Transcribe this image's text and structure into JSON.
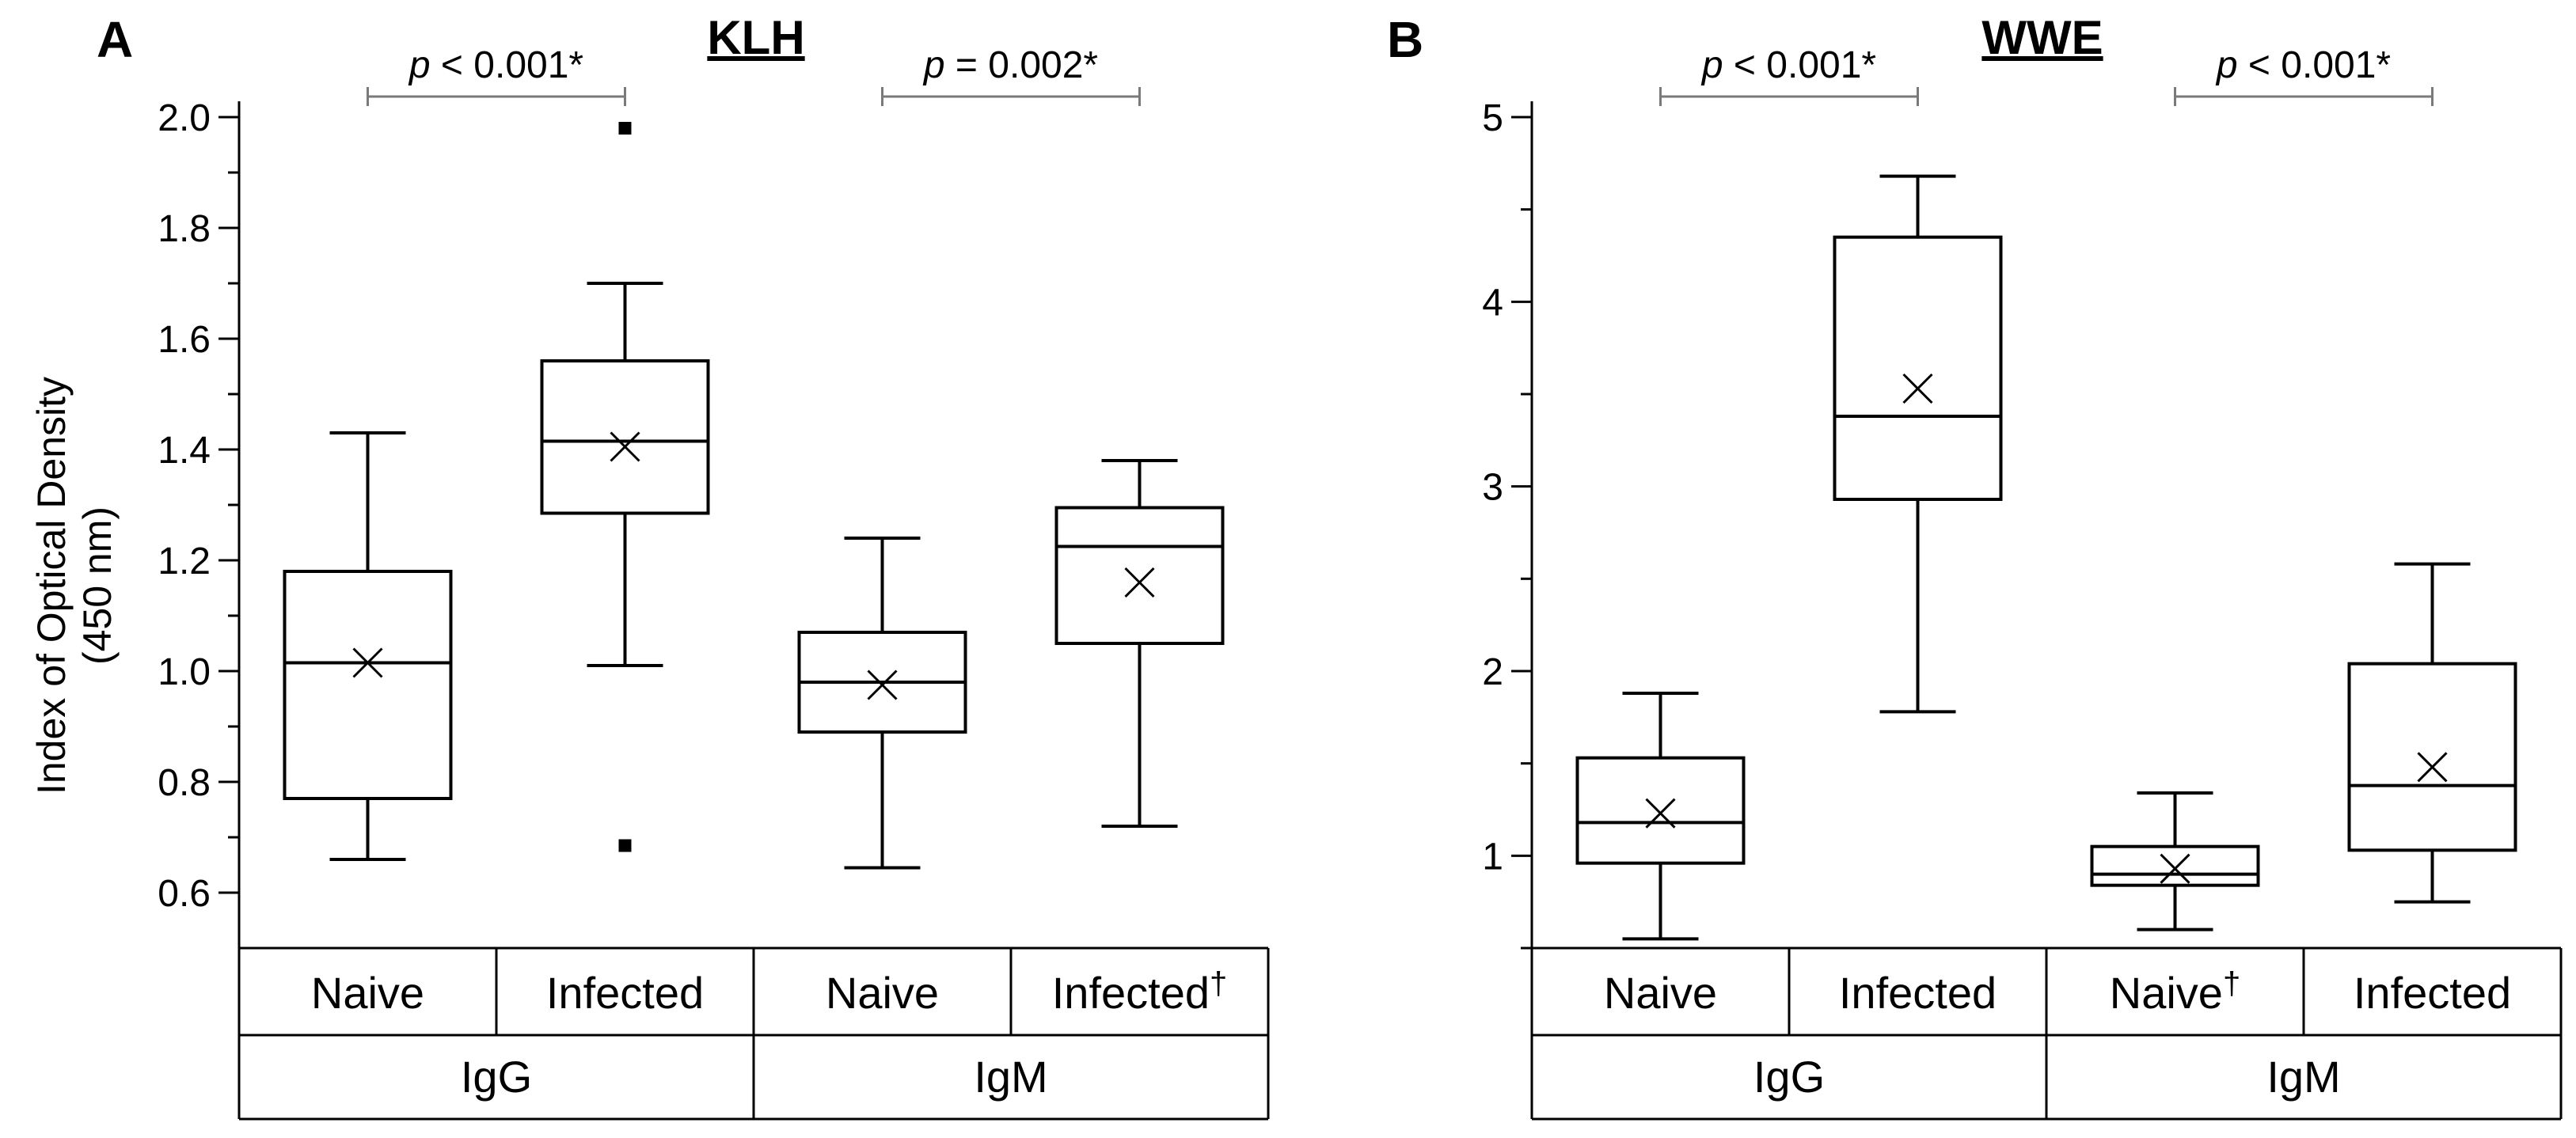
{
  "chart_data": [
    {
      "type": "box",
      "panel": "A",
      "title": "KLH",
      "ylabel": [
        "Index of Optical Density",
        "(450 nm)"
      ],
      "ylim": [
        0.5,
        2.0
      ],
      "yticks": [
        0.6,
        0.8,
        1.0,
        1.2,
        1.4,
        1.6,
        1.8,
        2.0
      ],
      "ytick_labels": [
        "0.6",
        "0.8",
        "1.0",
        "1.2",
        "1.4",
        "1.6",
        "1.8",
        "2.0"
      ],
      "boxes": [
        {
          "group": "IgG",
          "label": "Naive",
          "dagger": "",
          "min": 0.66,
          "q1": 0.77,
          "median": 1.015,
          "q3": 1.18,
          "max": 1.43,
          "mean": 1.015,
          "outliers": []
        },
        {
          "group": "IgG",
          "label": "Infected",
          "dagger": "",
          "min": 1.01,
          "q1": 1.285,
          "median": 1.415,
          "q3": 1.56,
          "max": 1.7,
          "mean": 1.405,
          "outliers": [
            1.98,
            0.685
          ]
        },
        {
          "group": "IgM",
          "label": "Naive",
          "dagger": "",
          "min": 0.645,
          "q1": 0.89,
          "median": 0.98,
          "q3": 1.07,
          "max": 1.24,
          "mean": 0.975,
          "outliers": []
        },
        {
          "group": "IgM",
          "label": "Infected",
          "dagger": "†",
          "min": 0.72,
          "q1": 1.05,
          "median": 1.225,
          "q3": 1.295,
          "max": 1.38,
          "mean": 1.16,
          "outliers": []
        }
      ],
      "groups": [
        "IgG",
        "IgM"
      ],
      "comparisons": [
        {
          "between": [
            0,
            1
          ],
          "p_prefix": "p",
          "p_text": " < 0.001*"
        },
        {
          "between": [
            2,
            3
          ],
          "p_prefix": "p",
          "p_text": " = 0.002*"
        }
      ]
    },
    {
      "type": "box",
      "panel": "B",
      "title": "WWE",
      "ylabel": [],
      "ylim": [
        0.5,
        5.0
      ],
      "yticks": [
        1,
        2,
        3,
        4,
        5
      ],
      "ytick_labels": [
        "1",
        "2",
        "3",
        "4",
        "5"
      ],
      "boxes": [
        {
          "group": "IgG",
          "label": "Naive",
          "dagger": "",
          "min": 0.55,
          "q1": 0.96,
          "median": 1.18,
          "q3": 1.53,
          "max": 1.88,
          "mean": 1.23,
          "outliers": []
        },
        {
          "group": "IgG",
          "label": "Infected",
          "dagger": "",
          "min": 1.78,
          "q1": 2.93,
          "median": 3.38,
          "q3": 4.35,
          "max": 4.68,
          "mean": 3.53,
          "outliers": []
        },
        {
          "group": "IgM",
          "label": "Naive",
          "dagger": "†",
          "min": 0.6,
          "q1": 0.84,
          "median": 0.9,
          "q3": 1.05,
          "max": 1.34,
          "mean": 0.93,
          "outliers": []
        },
        {
          "group": "IgM",
          "label": "Infected",
          "dagger": "",
          "min": 0.75,
          "q1": 1.03,
          "median": 1.38,
          "q3": 2.04,
          "max": 2.58,
          "mean": 1.48,
          "outliers": []
        }
      ],
      "groups": [
        "IgG",
        "IgM"
      ],
      "comparisons": [
        {
          "between": [
            0,
            1
          ],
          "p_prefix": "p",
          "p_text": " < 0.001*"
        },
        {
          "between": [
            2,
            3
          ],
          "p_prefix": "p",
          "p_text": " < 0.001*"
        }
      ]
    }
  ]
}
